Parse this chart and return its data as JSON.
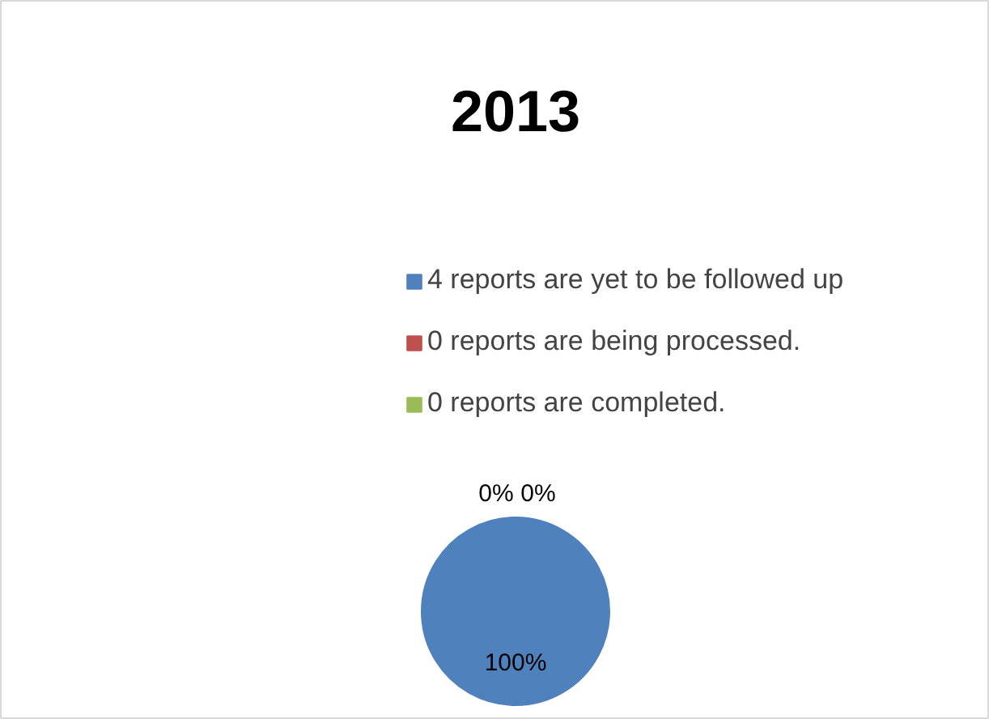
{
  "chart_data": {
    "type": "pie",
    "title": "2013",
    "categories": [
      "4 reports are yet to be followed up",
      "0 reports are being processed.",
      "0 reports are completed."
    ],
    "values": [
      100,
      0,
      0
    ],
    "colors": [
      "#4f81bd",
      "#c0504d",
      "#9bbb59"
    ],
    "value_labels": [
      "100%",
      "0%",
      "0%"
    ],
    "legend": "top"
  }
}
